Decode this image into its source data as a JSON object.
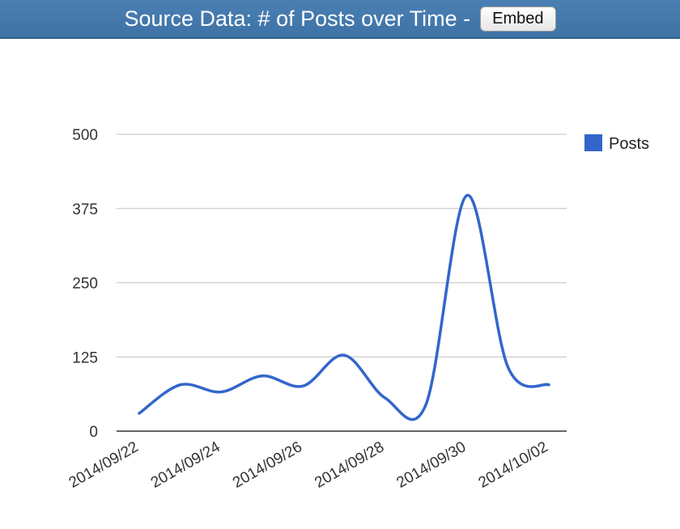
{
  "header": {
    "title": "Source Data: # of Posts over Time -",
    "embed_label": "Embed"
  },
  "colors": {
    "header_bg": "#4477aa",
    "series": "#3366cc",
    "grid": "#cccccc",
    "axis": "#333333"
  },
  "chart_data": {
    "type": "line",
    "title": "",
    "xlabel": "",
    "ylabel": "",
    "ylim": [
      0,
      500
    ],
    "yticks": [
      "0",
      "125",
      "250",
      "375",
      "500"
    ],
    "xticks": [
      "2014/09/22",
      "2014/09/24",
      "2014/09/26",
      "2014/09/28",
      "2014/09/30",
      "2014/10/02"
    ],
    "grid": true,
    "legend_position": "right",
    "x": [
      "2014/09/22",
      "2014/09/23",
      "2014/09/24",
      "2014/09/25",
      "2014/09/26",
      "2014/09/27",
      "2014/09/28",
      "2014/09/29",
      "2014/09/30",
      "2014/10/01",
      "2014/10/02"
    ],
    "series": [
      {
        "name": "Posts",
        "color": "#3366cc",
        "values": [
          30,
          78,
          66,
          93,
          76,
          128,
          56,
          45,
          397,
          108,
          78
        ]
      }
    ]
  }
}
